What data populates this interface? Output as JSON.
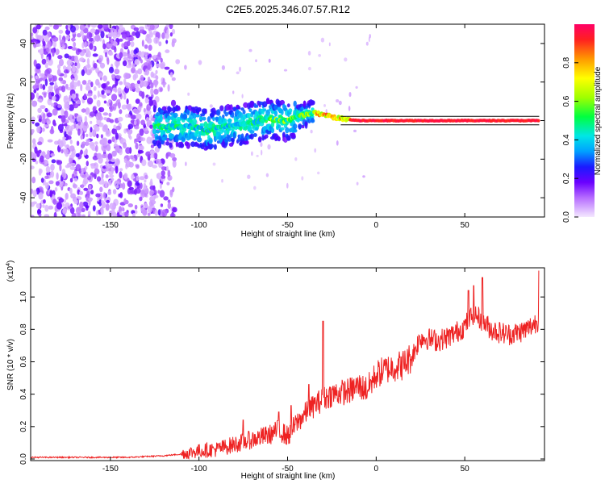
{
  "title": "C2E5.2025.346.07.57.R12",
  "colors": {
    "snr_line": "#ee2222",
    "axis": "#000000"
  },
  "chart_data": [
    {
      "type": "heatmap",
      "title": "C2E5.2025.346.07.57.R12",
      "xlabel": "Height of straight line (km)",
      "ylabel": "Frequency (Hz)",
      "xlim": [
        -195,
        95
      ],
      "ylim": [
        -50,
        50
      ],
      "x_ticks": [
        -150,
        -100,
        -50,
        0,
        50
      ],
      "x_tick_labels": [
        "-150",
        "-100",
        "-50",
        "0",
        "50"
      ],
      "y_ticks": [
        -40,
        -20,
        0,
        20,
        40
      ],
      "y_tick_labels": [
        "-40",
        "-20",
        "0",
        "20",
        "40"
      ],
      "noise_region": {
        "x_from": -195,
        "x_to": -112,
        "freq_span": [
          -50,
          50
        ]
      },
      "transition_region": {
        "x_from": -125,
        "x_to": -35
      },
      "signal_track": {
        "x": [
          -125,
          -115,
          -105,
          -95,
          -85,
          -75,
          -65,
          -60,
          -55,
          -50,
          -45,
          -40,
          -35,
          -30,
          -25,
          -20,
          -10,
          0,
          20,
          50,
          92
        ],
        "freq": [
          -3,
          -3,
          -3,
          -5,
          -3,
          -2,
          0,
          1,
          0,
          0,
          2,
          3,
          4,
          3,
          2,
          1,
          0,
          0,
          0,
          0,
          0
        ]
      },
      "colorbar": {
        "label": "Normalized spectral amplitude",
        "range": [
          0,
          1
        ],
        "ticks": [
          0,
          0.2,
          0.4,
          0.6,
          0.8
        ],
        "tick_labels": [
          "0.0",
          "0.2",
          "0.4",
          "0.6",
          "0.8"
        ]
      }
    },
    {
      "type": "line",
      "xlabel": "Height of straight line (km)",
      "ylabel": "SNR (10 * v/v)",
      "multiplier_label": "(x10",
      "multiplier_exp": "4",
      "multiplier_close": ")",
      "xlim": [
        -195,
        95
      ],
      "ylim": [
        -0.01,
        1.18
      ],
      "x_ticks": [
        -150,
        -100,
        -50,
        0,
        50
      ],
      "x_tick_labels": [
        "-150",
        "-100",
        "-50",
        "0",
        "50"
      ],
      "y_ticks": [
        0.0,
        0.2,
        0.4,
        0.6,
        0.8,
        1.0
      ],
      "y_tick_labels": [
        "0.0",
        "0.2",
        "0.4",
        "0.6",
        "0.8",
        "1.0"
      ],
      "series": [
        {
          "name": "SNR",
          "x": [
            -195,
            -180,
            -160,
            -140,
            -120,
            -110,
            -100,
            -90,
            -80,
            -70,
            -60,
            -55,
            -50,
            -45,
            -40,
            -35,
            -30,
            -25,
            -20,
            -15,
            -10,
            -5,
            0,
            5,
            10,
            15,
            20,
            25,
            30,
            35,
            40,
            45,
            50,
            55,
            60,
            65,
            70,
            75,
            80,
            85,
            92
          ],
          "y": [
            0.01,
            0.01,
            0.01,
            0.01,
            0.02,
            0.03,
            0.05,
            0.06,
            0.09,
            0.12,
            0.15,
            0.18,
            0.14,
            0.22,
            0.28,
            0.33,
            0.37,
            0.4,
            0.41,
            0.42,
            0.45,
            0.43,
            0.52,
            0.55,
            0.57,
            0.58,
            0.63,
            0.75,
            0.74,
            0.73,
            0.75,
            0.78,
            0.82,
            0.9,
            0.85,
            0.8,
            0.78,
            0.77,
            0.78,
            0.8,
            0.86
          ]
        }
      ],
      "peaks": {
        "x": [
          -30,
          -38,
          -48,
          -55,
          -75,
          52,
          55,
          60,
          92
        ],
        "y": [
          0.85,
          0.46,
          0.33,
          0.29,
          0.24,
          1.04,
          1.07,
          1.12,
          1.16
        ]
      }
    }
  ]
}
